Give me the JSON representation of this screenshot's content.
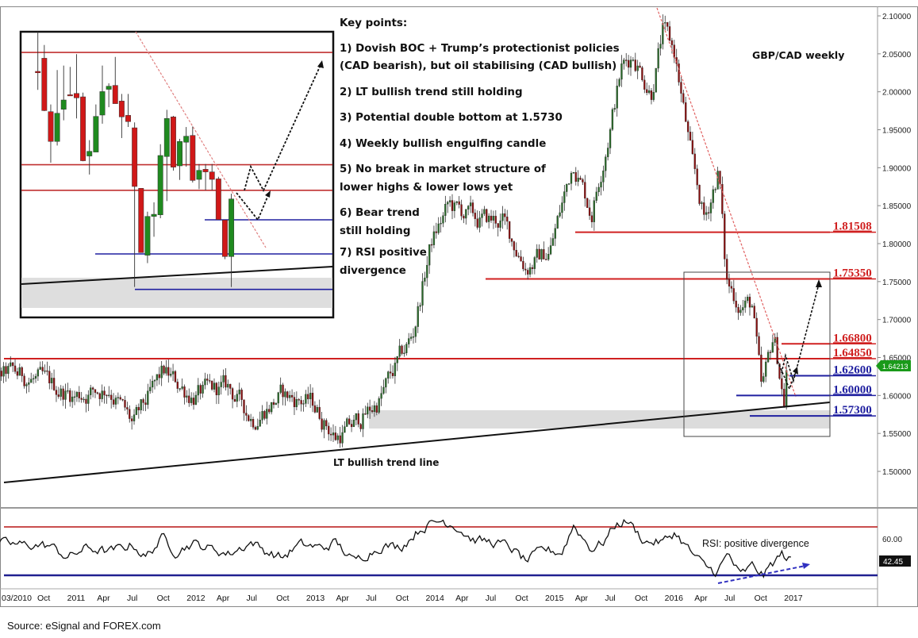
{
  "chart_data": [
    {
      "type": "candlestick",
      "title": "GBP/CAD weekly",
      "y_axis": {
        "ticks": [
          "2.10000",
          "2.05000",
          "2.00000",
          "1.95000",
          "1.90000",
          "1.85000",
          "1.80000",
          "1.75000",
          "1.70000",
          "1.65000",
          "1.60000",
          "1.55000",
          "1.50000"
        ],
        "range": [
          1.45,
          2.11
        ],
        "side": "right"
      },
      "x_axis": {
        "ticks": [
          "03/2010",
          "Oct",
          "2011",
          "Apr",
          "Jul",
          "Oct",
          "2012",
          "Apr",
          "Jul",
          "Oct",
          "2013",
          "Apr",
          "Jul",
          "Oct",
          "2014",
          "Apr",
          "Jul",
          "Oct",
          "2015",
          "Apr",
          "Jul",
          "Oct",
          "2016",
          "Apr",
          "Jul",
          "Oct",
          "2017"
        ]
      },
      "approx_close_path": [
        [
          2010.18,
          1.53
        ],
        [
          2010.3,
          1.61
        ],
        [
          2010.45,
          1.63
        ],
        [
          2010.7,
          1.62
        ],
        [
          2011.0,
          1.6
        ],
        [
          2011.3,
          1.61
        ],
        [
          2011.5,
          1.56
        ],
        [
          2011.75,
          1.63
        ],
        [
          2012.0,
          1.6
        ],
        [
          2012.3,
          1.61
        ],
        [
          2012.5,
          1.57
        ],
        [
          2012.75,
          1.6
        ],
        [
          2013.0,
          1.59
        ],
        [
          2013.2,
          1.545
        ],
        [
          2013.35,
          1.56
        ],
        [
          2013.55,
          1.59
        ],
        [
          2013.85,
          1.68
        ],
        [
          2014.0,
          1.8
        ],
        [
          2014.15,
          1.85
        ],
        [
          2014.4,
          1.83
        ],
        [
          2014.6,
          1.83
        ],
        [
          2014.8,
          1.77
        ],
        [
          2015.0,
          1.79
        ],
        [
          2015.2,
          1.91
        ],
        [
          2015.35,
          1.84
        ],
        [
          2015.5,
          1.95
        ],
        [
          2015.6,
          2.03
        ],
        [
          2015.7,
          2.05
        ],
        [
          2015.85,
          2.0
        ],
        [
          2015.95,
          2.08
        ],
        [
          2016.05,
          2.05
        ],
        [
          2016.2,
          1.9
        ],
        [
          2016.3,
          1.83
        ],
        [
          2016.42,
          1.9
        ],
        [
          2016.48,
          1.75
        ],
        [
          2016.6,
          1.72
        ],
        [
          2016.7,
          1.72
        ],
        [
          2016.78,
          1.6
        ],
        [
          2016.88,
          1.68
        ],
        [
          2016.97,
          1.59
        ],
        [
          2016.99,
          1.642
        ]
      ],
      "last_price": "1.64213",
      "levels": [
        {
          "value": "1.81508",
          "color": "#d02020"
        },
        {
          "value": "1.75350",
          "color": "#d02020"
        },
        {
          "value": "1.66800",
          "color": "#d02020"
        },
        {
          "value": "1.64850",
          "color": "#d02020"
        },
        {
          "value": "1.62600",
          "color": "#2020a0"
        },
        {
          "value": "1.60000",
          "color": "#2020a0"
        },
        {
          "value": "1.57300",
          "color": "#2020a0"
        }
      ],
      "annotations": {
        "trend_line_label": "LT bullish trend line",
        "key_points_title": "Key points:",
        "key_points": [
          "1) Dovish BOC + Trump’s protectionist policies",
          "(CAD bearish), but oil stabilising (CAD bullish)",
          "2) LT bullish trend still holding",
          "3) Potential double bottom at 1.5730",
          "4) Weekly bullish engulfing candle",
          "5) No break in market structure of",
          "lower highs & lower lows yet",
          "6) Bear trend",
          "still holding",
          "7) RSI positive",
          "divergence"
        ]
      },
      "colors": {
        "bull": "#1f8a1f",
        "bear": "#d01818",
        "resistance": "#d02020",
        "support": "#2020a0",
        "price_tag": "#1a9a1a"
      }
    },
    {
      "type": "candlestick",
      "name": "inset",
      "ohlc": [
        [
          1.7391,
          1.7693,
          1.725,
          1.738
        ],
        [
          1.7491,
          1.7592,
          1.7088,
          1.7092
        ],
        [
          1.7084,
          1.7139,
          1.6695,
          1.6857
        ],
        [
          1.6857,
          1.7401,
          1.6826,
          1.7072
        ],
        [
          1.7102,
          1.7435,
          1.7018,
          1.7173
        ],
        [
          1.7213,
          1.7425,
          1.7205,
          1.7205
        ],
        [
          1.7223,
          1.7522,
          1.7032,
          1.7189
        ],
        [
          1.7197,
          1.7229,
          1.6706,
          1.671
        ],
        [
          1.6746,
          1.6867,
          1.6605,
          1.6782
        ],
        [
          1.6776,
          1.7139,
          1.6776,
          1.7048
        ],
        [
          1.7058,
          1.7435,
          1.6992,
          1.7237
        ],
        [
          1.7254,
          1.73,
          1.7118,
          1.7278
        ],
        [
          1.7284,
          1.7501,
          1.7145,
          1.7145
        ],
        [
          1.7165,
          1.7219,
          1.6883,
          1.7044
        ],
        [
          1.7056,
          1.7219,
          1.6967,
          1.7008
        ],
        [
          1.6961,
          1.7002,
          1.5748,
          1.6514
        ],
        [
          1.65,
          1.65,
          1.601,
          1.601
        ],
        [
          1.599,
          1.6322,
          1.593,
          1.6286
        ],
        [
          1.6286,
          1.6393,
          1.6131,
          1.6302
        ],
        [
          1.6298,
          1.6836,
          1.6272,
          1.675
        ],
        [
          1.6742,
          1.7098,
          1.6403,
          1.7032
        ],
        [
          1.7044,
          1.7052,
          1.6635,
          1.6661
        ],
        [
          1.6671,
          1.6877,
          1.6564,
          1.6857
        ],
        [
          1.6851,
          1.6967,
          1.6665,
          1.6897
        ],
        [
          1.6903,
          1.6971,
          1.6544,
          1.656
        ],
        [
          1.6568,
          1.6685,
          1.6494,
          1.6637
        ],
        [
          1.6645,
          1.6685,
          1.6484,
          1.6625
        ],
        [
          1.6625,
          1.6685,
          1.6484,
          1.6568
        ],
        [
          1.6572,
          1.6588,
          1.6262,
          1.6262
        ],
        [
          1.6258,
          1.6258,
          1.596,
          1.598
        ],
        [
          1.598,
          1.6459,
          1.5748,
          1.6419
        ]
      ]
    },
    {
      "type": "line",
      "name": "RSI",
      "label": "RSI: positive divergence",
      "y_ticks": [
        "60.00"
      ],
      "levels": [
        70,
        30
      ],
      "last_value": "42.45",
      "approx_path": [
        [
          2010.18,
          45
        ],
        [
          2010.22,
          52
        ],
        [
          2010.3,
          58
        ],
        [
          2010.5,
          56
        ],
        [
          2010.8,
          55
        ],
        [
          2010.95,
          45
        ],
        [
          2011.1,
          53
        ],
        [
          2011.3,
          50
        ],
        [
          2011.5,
          56
        ],
        [
          2011.6,
          45
        ],
        [
          2011.75,
          62
        ],
        [
          2011.85,
          50
        ],
        [
          2012.0,
          57
        ],
        [
          2012.3,
          48
        ],
        [
          2012.5,
          58
        ],
        [
          2012.6,
          51
        ],
        [
          2012.75,
          45
        ],
        [
          2012.9,
          56
        ],
        [
          2013.1,
          53
        ],
        [
          2013.2,
          58
        ],
        [
          2013.35,
          42
        ],
        [
          2013.5,
          50
        ],
        [
          2013.6,
          55
        ],
        [
          2013.75,
          54
        ],
        [
          2013.9,
          68
        ],
        [
          2014.0,
          73
        ],
        [
          2014.1,
          76
        ],
        [
          2014.2,
          72
        ],
        [
          2014.35,
          60
        ],
        [
          2014.5,
          58
        ],
        [
          2014.65,
          55
        ],
        [
          2014.8,
          42
        ],
        [
          2014.95,
          52
        ],
        [
          2015.1,
          49
        ],
        [
          2015.2,
          72
        ],
        [
          2015.35,
          52
        ],
        [
          2015.45,
          58
        ],
        [
          2015.55,
          72
        ],
        [
          2015.65,
          76
        ],
        [
          2015.8,
          58
        ],
        [
          2015.95,
          58
        ],
        [
          2016.05,
          66
        ],
        [
          2016.2,
          48
        ],
        [
          2016.3,
          38
        ],
        [
          2016.4,
          33
        ],
        [
          2016.5,
          48
        ],
        [
          2016.6,
          30
        ],
        [
          2016.7,
          38
        ],
        [
          2016.8,
          30
        ],
        [
          2016.85,
          38
        ],
        [
          2016.95,
          48
        ],
        [
          2017.0,
          44
        ],
        [
          2017.04,
          42.45
        ]
      ]
    }
  ],
  "footer": {
    "source": "Source: eSignal and FOREX.com"
  }
}
